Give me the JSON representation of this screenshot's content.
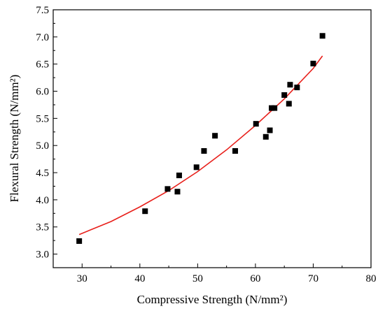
{
  "chart_data": {
    "type": "scatter",
    "xlabel": "Compressive Strength (N/mm²)",
    "ylabel": "Flexural Strength (N/mm²)",
    "xlim": [
      25,
      80
    ],
    "ylim": [
      2.75,
      7.5
    ],
    "x_ticks": [
      "30",
      "40",
      "50",
      "60",
      "70",
      "80"
    ],
    "y_ticks": [
      "3.0",
      "3.5",
      "4.0",
      "4.5",
      "5.0",
      "5.5",
      "6.0",
      "6.5",
      "7.0",
      "7.5"
    ],
    "grid": false,
    "legend": "none",
    "points": [
      {
        "x": 29.5,
        "y": 3.24
      },
      {
        "x": 40.9,
        "y": 3.79
      },
      {
        "x": 44.8,
        "y": 4.2
      },
      {
        "x": 46.5,
        "y": 4.15
      },
      {
        "x": 46.8,
        "y": 4.45
      },
      {
        "x": 49.8,
        "y": 4.6
      },
      {
        "x": 51.1,
        "y": 4.9
      },
      {
        "x": 53.0,
        "y": 5.18
      },
      {
        "x": 56.5,
        "y": 4.9
      },
      {
        "x": 60.1,
        "y": 5.4
      },
      {
        "x": 61.8,
        "y": 5.16
      },
      {
        "x": 62.5,
        "y": 5.28
      },
      {
        "x": 62.8,
        "y": 5.69
      },
      {
        "x": 63.3,
        "y": 5.69
      },
      {
        "x": 65.0,
        "y": 5.93
      },
      {
        "x": 65.8,
        "y": 5.77
      },
      {
        "x": 66.0,
        "y": 6.12
      },
      {
        "x": 67.2,
        "y": 6.07
      },
      {
        "x": 70.0,
        "y": 6.51
      },
      {
        "x": 71.6,
        "y": 7.02
      }
    ],
    "fit_curve": [
      {
        "x": 29.5,
        "y": 3.36
      },
      {
        "x": 35,
        "y": 3.6
      },
      {
        "x": 40,
        "y": 3.87
      },
      {
        "x": 45,
        "y": 4.17
      },
      {
        "x": 50,
        "y": 4.52
      },
      {
        "x": 55,
        "y": 4.92
      },
      {
        "x": 60,
        "y": 5.37
      },
      {
        "x": 65,
        "y": 5.86
      },
      {
        "x": 70,
        "y": 6.42
      },
      {
        "x": 71.6,
        "y": 6.65
      }
    ],
    "colors": {
      "points": "#000000",
      "fit": "#e8201b",
      "axes": "#000000"
    }
  }
}
